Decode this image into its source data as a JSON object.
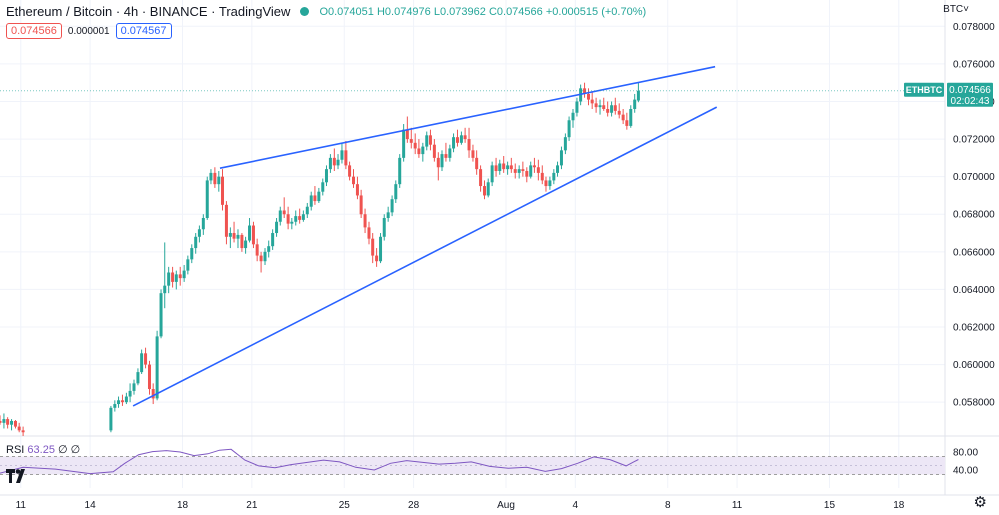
{
  "header": {
    "title": "Ethereum / Bitcoin · 4h · BINANCE · TradingView",
    "open_label": "O",
    "open": "0.074051",
    "high_label": "H",
    "high": "0.074976",
    "low_label": "L",
    "low": "0.073962",
    "close_label": "C",
    "close": "0.074566",
    "change": "+0.000515 (+0.70%)"
  },
  "bid": "0.074566",
  "spread": "0.000001",
  "ask": "0.074567",
  "currency": "BTC",
  "rsi": {
    "label": "RSI",
    "value": "63.25",
    "extra": "∅ ∅"
  },
  "icons": {
    "logo": "tradingview-logo-icon",
    "settings": "gear-icon",
    "dropdown": "chevron-down-icon"
  },
  "colors": {
    "up": "#26a69a",
    "down": "#ef5350",
    "trendline": "#2962ff",
    "rsi": "#7e57c2",
    "rsi_band": "#ede7f6",
    "grid": "#f0f3fa"
  },
  "chart_data": {
    "type": "candlestick",
    "symbol": "ETHBTC",
    "timeframe": "4h",
    "price_label": {
      "symbol": "ETHBTC",
      "value": "0.074566",
      "countdown": "02:02:43"
    },
    "y_axis": {
      "ticks": [
        "0.078000",
        "0.076000",
        "0.074000",
        "0.072000",
        "0.070000",
        "0.068000",
        "0.066000",
        "0.064000",
        "0.062000",
        "0.060000",
        "0.058000"
      ],
      "range": [
        0.0562,
        0.0794
      ]
    },
    "x_axis": {
      "ticks": [
        "11",
        "14",
        "18",
        "21",
        "25",
        "28",
        "Aug",
        "4",
        "8",
        "11",
        "15",
        "18"
      ],
      "tick_positions": [
        9.5,
        12.5,
        16.5,
        19.5,
        23.5,
        26.5,
        30.5,
        33.5,
        37.5,
        40.5,
        44.5,
        47.5
      ],
      "range": [
        8.6,
        49.5
      ]
    },
    "candles": [
      [
        8.6,
        0.057,
        0.0573,
        0.0568,
        0.0569
      ],
      [
        8.77,
        0.0569,
        0.0574,
        0.0566,
        0.0571
      ],
      [
        8.93,
        0.0571,
        0.0572,
        0.0566,
        0.0568
      ],
      [
        9.1,
        0.0568,
        0.0571,
        0.0565,
        0.057
      ],
      [
        9.27,
        0.057,
        0.05705,
        0.0566,
        0.0567
      ],
      [
        9.43,
        0.0567,
        0.0569,
        0.0564,
        0.0565
      ],
      [
        9.6,
        0.0565,
        0.0567,
        0.0562,
        0.0564
      ],
      [
        13.4,
        0.0565,
        0.0578,
        0.0564,
        0.0577
      ],
      [
        13.57,
        0.0577,
        0.0581,
        0.0575,
        0.0579
      ],
      [
        13.73,
        0.0579,
        0.0583,
        0.0577,
        0.0581
      ],
      [
        13.9,
        0.0581,
        0.0584,
        0.0578,
        0.058
      ],
      [
        14.07,
        0.058,
        0.0585,
        0.0579,
        0.0583
      ],
      [
        14.23,
        0.0583,
        0.059,
        0.058,
        0.0586
      ],
      [
        14.4,
        0.0586,
        0.0592,
        0.0584,
        0.059
      ],
      [
        14.57,
        0.059,
        0.0598,
        0.0589,
        0.0596
      ],
      [
        14.73,
        0.0596,
        0.0608,
        0.0595,
        0.0606
      ],
      [
        14.9,
        0.0606,
        0.0609,
        0.0598,
        0.06
      ],
      [
        15.07,
        0.06,
        0.0602,
        0.0584,
        0.0587
      ],
      [
        15.23,
        0.0587,
        0.059,
        0.0579,
        0.0582
      ],
      [
        15.4,
        0.0582,
        0.0618,
        0.0581,
        0.0615
      ],
      [
        15.57,
        0.0615,
        0.064,
        0.0614,
        0.0638
      ],
      [
        15.73,
        0.0638,
        0.0665,
        0.063,
        0.0642
      ],
      [
        15.9,
        0.0642,
        0.0652,
        0.0638,
        0.0649
      ],
      [
        16.07,
        0.0649,
        0.0652,
        0.0641,
        0.0644
      ],
      [
        16.23,
        0.0644,
        0.065,
        0.064,
        0.0648
      ],
      [
        16.4,
        0.0648,
        0.0652,
        0.0642,
        0.0646
      ],
      [
        16.57,
        0.0646,
        0.0653,
        0.0644,
        0.065
      ],
      [
        16.73,
        0.065,
        0.0658,
        0.0648,
        0.0656
      ],
      [
        16.9,
        0.0656,
        0.0664,
        0.0654,
        0.0662
      ],
      [
        17.07,
        0.0662,
        0.067,
        0.0659,
        0.0668
      ],
      [
        17.23,
        0.0668,
        0.0674,
        0.0665,
        0.0672
      ],
      [
        17.4,
        0.0672,
        0.068,
        0.0669,
        0.0678
      ],
      [
        17.57,
        0.0678,
        0.07,
        0.0677,
        0.0698
      ],
      [
        17.73,
        0.0698,
        0.0704,
        0.0696,
        0.0702
      ],
      [
        17.9,
        0.0702,
        0.0705,
        0.0694,
        0.0696
      ],
      [
        18.07,
        0.0696,
        0.0703,
        0.0692,
        0.07
      ],
      [
        18.23,
        0.07,
        0.0704,
        0.0682,
        0.0685
      ],
      [
        18.4,
        0.0685,
        0.0687,
        0.0664,
        0.0668
      ],
      [
        18.57,
        0.0668,
        0.0673,
        0.0662,
        0.067
      ],
      [
        18.73,
        0.067,
        0.0676,
        0.0665,
        0.0667
      ],
      [
        18.9,
        0.0667,
        0.0672,
        0.0662,
        0.0669
      ],
      [
        19.07,
        0.0669,
        0.067,
        0.066,
        0.0662
      ],
      [
        19.23,
        0.0662,
        0.0668,
        0.0659,
        0.0666
      ],
      [
        19.4,
        0.0666,
        0.0678,
        0.0665,
        0.0674
      ],
      [
        19.57,
        0.0674,
        0.0676,
        0.0662,
        0.0664
      ],
      [
        19.73,
        0.0664,
        0.0667,
        0.0655,
        0.0658
      ],
      [
        19.9,
        0.0658,
        0.066,
        0.0649,
        0.0655
      ],
      [
        20.07,
        0.0655,
        0.0662,
        0.0653,
        0.066
      ],
      [
        20.23,
        0.066,
        0.0666,
        0.0657,
        0.0663
      ],
      [
        20.4,
        0.0663,
        0.0672,
        0.0661,
        0.067
      ],
      [
        20.57,
        0.067,
        0.0678,
        0.0668,
        0.0676
      ],
      [
        20.73,
        0.0676,
        0.0684,
        0.0674,
        0.0682
      ],
      [
        20.9,
        0.0682,
        0.0689,
        0.0678,
        0.068
      ],
      [
        21.07,
        0.068,
        0.0684,
        0.0672,
        0.0675
      ],
      [
        21.23,
        0.0675,
        0.0678,
        0.0672,
        0.0676
      ],
      [
        21.4,
        0.0676,
        0.0682,
        0.0674,
        0.0679
      ],
      [
        21.57,
        0.0679,
        0.0683,
        0.0675,
        0.0677
      ],
      [
        21.73,
        0.0677,
        0.0682,
        0.0676,
        0.068
      ],
      [
        21.9,
        0.068,
        0.0686,
        0.0678,
        0.0684
      ],
      [
        22.07,
        0.0684,
        0.0692,
        0.0682,
        0.069
      ],
      [
        22.23,
        0.069,
        0.0695,
        0.0685,
        0.0687
      ],
      [
        22.4,
        0.0687,
        0.0694,
        0.0686,
        0.0692
      ],
      [
        22.57,
        0.0692,
        0.0699,
        0.069,
        0.0697
      ],
      [
        22.73,
        0.0697,
        0.0706,
        0.0695,
        0.0704
      ],
      [
        22.9,
        0.0704,
        0.0712,
        0.0702,
        0.071
      ],
      [
        23.07,
        0.071,
        0.0715,
        0.0703,
        0.0706
      ],
      [
        23.23,
        0.0706,
        0.0712,
        0.0704,
        0.0709
      ],
      [
        23.4,
        0.0709,
        0.0718,
        0.0707,
        0.0714
      ],
      [
        23.57,
        0.0714,
        0.0719,
        0.0704,
        0.0706
      ],
      [
        23.73,
        0.0706,
        0.0708,
        0.0698,
        0.07
      ],
      [
        23.9,
        0.07,
        0.0704,
        0.0694,
        0.0696
      ],
      [
        24.07,
        0.0696,
        0.07,
        0.0688,
        0.069
      ],
      [
        24.23,
        0.069,
        0.0693,
        0.0678,
        0.068
      ],
      [
        24.4,
        0.068,
        0.0683,
        0.067,
        0.0673
      ],
      [
        24.57,
        0.0673,
        0.0676,
        0.0664,
        0.0667
      ],
      [
        24.73,
        0.0667,
        0.067,
        0.0654,
        0.0658
      ],
      [
        24.9,
        0.0658,
        0.0662,
        0.0652,
        0.0655
      ],
      [
        25.07,
        0.0655,
        0.067,
        0.0654,
        0.0668
      ],
      [
        25.23,
        0.0668,
        0.068,
        0.0666,
        0.0678
      ],
      [
        25.4,
        0.0678,
        0.0684,
        0.0676,
        0.0681
      ],
      [
        25.57,
        0.0681,
        0.069,
        0.0679,
        0.0688
      ],
      [
        25.73,
        0.0688,
        0.0698,
        0.0686,
        0.0696
      ],
      [
        25.9,
        0.0696,
        0.0712,
        0.0694,
        0.071
      ],
      [
        26.07,
        0.071,
        0.0728,
        0.0708,
        0.0725
      ],
      [
        26.23,
        0.0725,
        0.0732,
        0.0718,
        0.072
      ],
      [
        26.4,
        0.072,
        0.0726,
        0.0715,
        0.0718
      ],
      [
        26.57,
        0.0718,
        0.0723,
        0.0712,
        0.0715
      ],
      [
        26.73,
        0.0715,
        0.072,
        0.071,
        0.0712
      ],
      [
        26.9,
        0.0712,
        0.0718,
        0.0708,
        0.0716
      ],
      [
        27.07,
        0.0716,
        0.0724,
        0.0714,
        0.0722
      ],
      [
        27.23,
        0.0722,
        0.0725,
        0.0714,
        0.0717
      ],
      [
        27.4,
        0.0717,
        0.072,
        0.0708,
        0.071
      ],
      [
        27.57,
        0.071,
        0.0713,
        0.0698,
        0.0705
      ],
      [
        27.73,
        0.0705,
        0.0714,
        0.0703,
        0.0712
      ],
      [
        27.9,
        0.0712,
        0.0718,
        0.0708,
        0.071
      ],
      [
        28.07,
        0.071,
        0.0717,
        0.0708,
        0.0715
      ],
      [
        28.23,
        0.0715,
        0.0723,
        0.0713,
        0.0721
      ],
      [
        28.4,
        0.0721,
        0.0725,
        0.0716,
        0.0718
      ],
      [
        28.57,
        0.0718,
        0.0724,
        0.0717,
        0.0722
      ],
      [
        28.73,
        0.0722,
        0.0726,
        0.0718,
        0.072
      ],
      [
        28.9,
        0.072,
        0.0726,
        0.071,
        0.0714
      ],
      [
        29.07,
        0.0714,
        0.0717,
        0.0708,
        0.071
      ],
      [
        29.23,
        0.071,
        0.0714,
        0.0701,
        0.0704
      ],
      [
        29.4,
        0.0704,
        0.0706,
        0.0692,
        0.0695
      ],
      [
        29.57,
        0.0695,
        0.0698,
        0.0688,
        0.069
      ],
      [
        29.73,
        0.069,
        0.0699,
        0.0689,
        0.0697
      ],
      [
        29.9,
        0.0697,
        0.0708,
        0.0695,
        0.0706
      ],
      [
        30.07,
        0.0706,
        0.071,
        0.07,
        0.0703
      ],
      [
        30.23,
        0.0703,
        0.0709,
        0.0701,
        0.0707
      ],
      [
        30.4,
        0.0707,
        0.0711,
        0.0702,
        0.0704
      ],
      [
        30.57,
        0.0704,
        0.0708,
        0.0701,
        0.0706
      ],
      [
        30.73,
        0.0706,
        0.071,
        0.0702,
        0.0704
      ],
      [
        30.9,
        0.0704,
        0.0707,
        0.0699,
        0.0702
      ],
      [
        31.07,
        0.0702,
        0.0706,
        0.0699,
        0.0704
      ],
      [
        31.23,
        0.0704,
        0.0708,
        0.07,
        0.0703
      ],
      [
        31.4,
        0.0703,
        0.0705,
        0.0697,
        0.07
      ],
      [
        31.57,
        0.07,
        0.0708,
        0.0699,
        0.0706
      ],
      [
        31.73,
        0.0706,
        0.071,
        0.0702,
        0.0705
      ],
      [
        31.9,
        0.0705,
        0.0709,
        0.0698,
        0.0702
      ],
      [
        32.07,
        0.0702,
        0.0706,
        0.0696,
        0.0698
      ],
      [
        32.23,
        0.0698,
        0.07,
        0.0692,
        0.0695
      ],
      [
        32.4,
        0.0695,
        0.07,
        0.0693,
        0.0698
      ],
      [
        32.57,
        0.0698,
        0.0704,
        0.0696,
        0.0702
      ],
      [
        32.73,
        0.0702,
        0.0708,
        0.07,
        0.0706
      ],
      [
        32.9,
        0.0706,
        0.0716,
        0.0704,
        0.0714
      ],
      [
        33.07,
        0.0714,
        0.0723,
        0.0712,
        0.0721
      ],
      [
        33.23,
        0.0721,
        0.0732,
        0.0719,
        0.073
      ],
      [
        33.4,
        0.073,
        0.0736,
        0.0726,
        0.0734
      ],
      [
        33.57,
        0.0734,
        0.0742,
        0.0732,
        0.074
      ],
      [
        33.73,
        0.074,
        0.0749,
        0.0738,
        0.0747
      ],
      [
        33.9,
        0.0747,
        0.075,
        0.0742,
        0.0744
      ],
      [
        34.07,
        0.0744,
        0.0747,
        0.0738,
        0.0741
      ],
      [
        34.23,
        0.0741,
        0.0745,
        0.0736,
        0.0739
      ],
      [
        34.4,
        0.0739,
        0.0742,
        0.0734,
        0.0737
      ],
      [
        34.57,
        0.0737,
        0.0741,
        0.0733,
        0.0738
      ],
      [
        34.73,
        0.0738,
        0.0742,
        0.0735,
        0.0736
      ],
      [
        34.9,
        0.0736,
        0.074,
        0.0732,
        0.0734
      ],
      [
        35.07,
        0.0734,
        0.074,
        0.0732,
        0.0738
      ],
      [
        35.23,
        0.0738,
        0.0742,
        0.0733,
        0.0735
      ],
      [
        35.4,
        0.0735,
        0.0739,
        0.0731,
        0.0733
      ],
      [
        35.57,
        0.0733,
        0.0736,
        0.0728,
        0.073
      ],
      [
        35.73,
        0.073,
        0.0734,
        0.0725,
        0.0727
      ],
      [
        35.9,
        0.0727,
        0.0738,
        0.0726,
        0.0736
      ],
      [
        36.07,
        0.0736,
        0.0744,
        0.0734,
        0.0741
      ],
      [
        36.23,
        0.07405,
        0.07498,
        0.07396,
        0.07457
      ]
    ],
    "trendlines": [
      {
        "name": "upper",
        "from": [
          18.12,
          0.07045
        ],
        "to": [
          39.55,
          0.07585
        ]
      },
      {
        "name": "lower",
        "from": [
          14.36,
          0.0578
        ],
        "to": [
          39.62,
          0.0737
        ]
      }
    ],
    "rsi": {
      "range": [
        0,
        100
      ],
      "band": [
        30,
        70
      ],
      "ticks": [
        "80.00",
        "40.00"
      ],
      "tick_values": [
        80,
        40
      ],
      "x": [
        8.6,
        9.6,
        11.0,
        12.5,
        13.5,
        14.0,
        14.6,
        15.2,
        15.8,
        16.4,
        17.0,
        17.6,
        18.1,
        18.6,
        19.2,
        19.8,
        20.5,
        21.2,
        21.9,
        22.6,
        23.3,
        24.0,
        24.8,
        25.5,
        26.2,
        26.9,
        27.6,
        28.3,
        29.0,
        29.8,
        30.6,
        31.4,
        32.2,
        32.9,
        33.6,
        34.3,
        35.0,
        35.7,
        36.23
      ],
      "values": [
        33,
        46,
        42,
        32,
        36,
        55,
        74,
        81,
        83,
        80,
        72,
        76,
        84,
        86,
        62,
        49,
        45,
        52,
        57,
        62,
        58,
        46,
        40,
        55,
        61,
        57,
        53,
        55,
        58,
        48,
        44,
        46,
        37,
        43,
        55,
        69,
        63,
        49,
        63.25
      ]
    }
  }
}
